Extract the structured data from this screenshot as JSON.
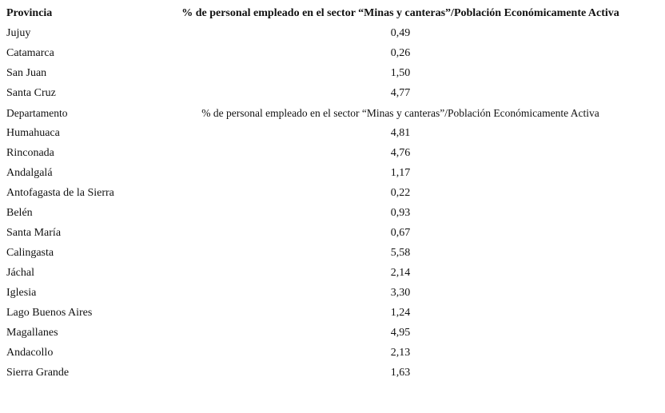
{
  "table": {
    "sections": [
      {
        "header": [
          "Provincia",
          "% de personal empleado en el sector “Minas y canteras”/Población Económicamente Activa"
        ],
        "rows": [
          [
            "Jujuy",
            "0,49"
          ],
          [
            "Catamarca",
            "0,26"
          ],
          [
            "San Juan",
            "1,50"
          ],
          [
            "Santa Cruz",
            "4,77"
          ]
        ]
      },
      {
        "header": [
          "Departamento",
          "% de personal empleado en el sector “Minas y canteras”/Población Económicamente Activa"
        ],
        "rows": [
          [
            "Humahuaca",
            "4,81"
          ],
          [
            "Rinconada",
            "4,76"
          ],
          [
            "Andalgalá",
            "1,17"
          ],
          [
            "Antofagasta de la Sierra",
            "0,22"
          ],
          [
            "Belén",
            "0,93"
          ],
          [
            "Santa María",
            "0,67"
          ],
          [
            "Calingasta",
            "5,58"
          ],
          [
            "Jáchal",
            "2,14"
          ],
          [
            "Iglesia",
            "3,30"
          ],
          [
            "Lago Buenos Aires",
            "1,24"
          ],
          [
            "Magallanes",
            "4,95"
          ],
          [
            "Andacollo",
            "2,13"
          ],
          [
            "Sierra Grande",
            "1,63"
          ]
        ]
      }
    ]
  }
}
